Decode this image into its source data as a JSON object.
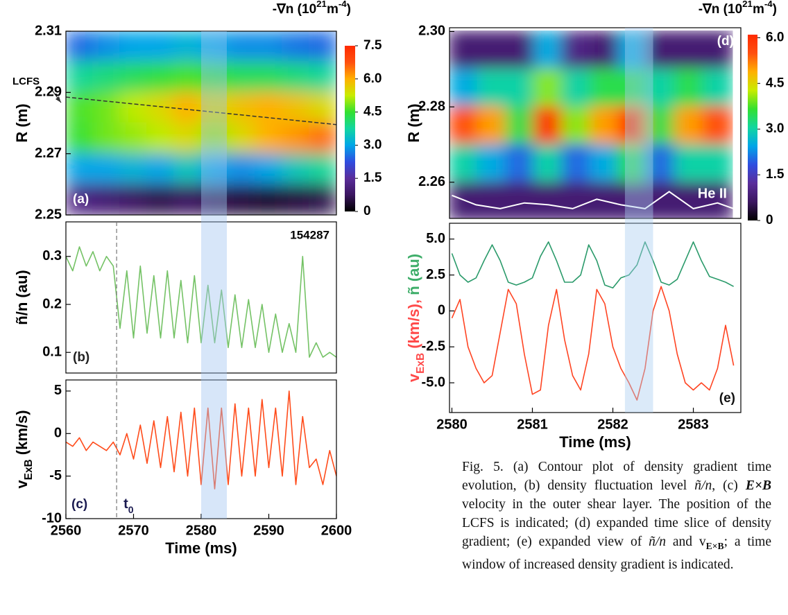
{
  "chart_data": [
    {
      "type": "heatmap",
      "panel_label": "(a)",
      "ylabel": "R (m)",
      "colorbar_label": [
        {
          "text": "-∇n (10"
        },
        {
          "text": "21",
          "style": "sup"
        },
        {
          "text": "m"
        },
        {
          "text": "-4",
          "style": "sup"
        },
        {
          "text": ")"
        }
      ],
      "ylim": [
        2.25,
        2.31
      ],
      "yticks": [
        2.25,
        2.27,
        2.29,
        2.31
      ],
      "xlim": [
        2560,
        2600
      ],
      "clim": [
        0,
        7.5
      ],
      "colorbar_ticks": [
        0,
        1.5,
        {
          "value": 3,
          "label": "3.0"
        },
        4.5,
        {
          "value": 6,
          "label": "6.0"
        },
        7.5
      ],
      "colormap": [
        "#000000",
        "#3b1660",
        "#5a2d9a",
        "#2f4de0",
        "#00a6e8",
        "#12d6a0",
        "#33e030",
        "#c8ec00",
        "#ffb000",
        "#ff5010",
        "#ff2a00"
      ],
      "x": [
        2562,
        2566,
        2570,
        2574,
        2578,
        2582,
        2586,
        2590,
        2594,
        2598
      ],
      "y": [
        2.305,
        2.295,
        2.285,
        2.275,
        2.265,
        2.255
      ],
      "z": [
        [
          2.5,
          2.8,
          3.0,
          3.0,
          3.2,
          3.0,
          2.8,
          2.8,
          2.6,
          2.5
        ],
        [
          3.8,
          4.0,
          4.2,
          4.4,
          4.6,
          4.4,
          4.2,
          4.2,
          4.0,
          3.8
        ],
        [
          4.6,
          4.8,
          5.2,
          5.5,
          6.0,
          5.5,
          5.8,
          6.0,
          5.8,
          5.5
        ],
        [
          4.5,
          4.8,
          5.0,
          5.2,
          5.5,
          5.0,
          5.5,
          6.0,
          6.2,
          6.5
        ],
        [
          3.0,
          3.0,
          3.2,
          3.0,
          3.5,
          3.0,
          2.8,
          3.0,
          3.5,
          3.8
        ],
        [
          1.2,
          1.0,
          0.8,
          0.6,
          0.8,
          0.6,
          0.5,
          0.4,
          0.5,
          0.6
        ]
      ],
      "lcfs": {
        "label": "LCFS",
        "x": [
          2560,
          2600
        ],
        "values": [
          2.2885,
          2.2795
        ]
      },
      "highlight": [
        2580,
        2583.8
      ]
    },
    {
      "type": "line",
      "panel_label": "(b)",
      "annotation": "154287",
      "ylabel": "ñ/n (au)",
      "ylim": [
        0.057,
        0.372
      ],
      "yticks": [
        0.1,
        0.2,
        0.3
      ],
      "xlim": [
        2560,
        2600
      ],
      "x": [
        2560,
        2561,
        2562,
        2563,
        2564,
        2565,
        2566,
        2567,
        2568,
        2569,
        2570,
        2571,
        2572,
        2573,
        2574,
        2575,
        2576,
        2577,
        2578,
        2579,
        2580,
        2581,
        2582,
        2583,
        2584,
        2585,
        2586,
        2587,
        2588,
        2589,
        2590,
        2591,
        2592,
        2593,
        2594,
        2595,
        2596,
        2597,
        2598,
        2599,
        2600
      ],
      "series": [
        {
          "color": "#74c265",
          "values": [
            0.3,
            0.27,
            0.32,
            0.28,
            0.31,
            0.27,
            0.3,
            0.28,
            0.15,
            0.27,
            0.13,
            0.28,
            0.14,
            0.26,
            0.13,
            0.27,
            0.13,
            0.25,
            0.12,
            0.26,
            0.12,
            0.24,
            0.12,
            0.23,
            0.11,
            0.22,
            0.11,
            0.21,
            0.11,
            0.2,
            0.1,
            0.18,
            0.1,
            0.16,
            0.1,
            0.3,
            0.09,
            0.12,
            0.09,
            0.1,
            0.09
          ]
        }
      ]
    },
    {
      "type": "line",
      "panel_label": "(c)",
      "ylabel": [
        {
          "text": "v"
        },
        {
          "text": "ExB",
          "style": "sub"
        },
        {
          "text": " (km/s)"
        }
      ],
      "ylim": [
        -10,
        6.3
      ],
      "yticks": [
        -10,
        -5,
        0,
        5
      ],
      "xlim": [
        2560,
        2600
      ],
      "xticks": [
        2560,
        2570,
        2580,
        2590,
        2600
      ],
      "xlabel": "Time (ms)",
      "t0_label": [
        {
          "text": "t"
        },
        {
          "text": "0",
          "style": "sub"
        }
      ],
      "t0_line": 2567.5,
      "x": [
        2560,
        2561,
        2562,
        2563,
        2564,
        2565,
        2566,
        2567,
        2568,
        2569,
        2570,
        2571,
        2572,
        2573,
        2574,
        2575,
        2576,
        2577,
        2578,
        2579,
        2580,
        2581,
        2582,
        2583,
        2584,
        2585,
        2586,
        2587,
        2588,
        2589,
        2590,
        2591,
        2592,
        2593,
        2594,
        2595,
        2596,
        2597,
        2598,
        2599,
        2600
      ],
      "series": [
        {
          "color": "#ff4b1a",
          "values": [
            -1,
            -1.5,
            -0.5,
            -2,
            -1,
            -1.5,
            -2,
            -1,
            -2.5,
            0,
            -3,
            1,
            -3.5,
            1.5,
            -4,
            2,
            -4.5,
            2.5,
            -5,
            3,
            -6,
            3,
            -6.5,
            3,
            -6,
            3.5,
            -5,
            3,
            -5,
            4,
            -4,
            3,
            -5,
            5,
            -6,
            2,
            -4,
            -3,
            -6,
            -2,
            -5
          ]
        }
      ]
    },
    {
      "type": "heatmap",
      "panel_label": "(d)",
      "ylabel": "R (m)",
      "colorbar_label": [
        {
          "text": "-∇n (10"
        },
        {
          "text": "21",
          "style": "sup"
        },
        {
          "text": "m"
        },
        {
          "text": "-4",
          "style": "sup"
        },
        {
          "text": ")"
        }
      ],
      "ylim": [
        2.2504,
        2.301
      ],
      "yticks": [
        2.26,
        2.28,
        {
          "value": 2.3,
          "label": "2.30"
        }
      ],
      "xlim": [
        2579.97,
        2583.59
      ],
      "clim": [
        0,
        6.1
      ],
      "colorbar_ticks": [
        0,
        1.5,
        {
          "value": 3,
          "label": "3.0"
        },
        4.5,
        {
          "value": 6,
          "label": "6.0"
        }
      ],
      "colormap": [
        "#000000",
        "#3b1660",
        "#5a2d9a",
        "#2f4de0",
        "#00a6e8",
        "#12d6a0",
        "#33e030",
        "#c8ec00",
        "#ffb000",
        "#ff5010",
        "#ff2a00"
      ],
      "x": [
        2580.15,
        2580.5,
        2580.85,
        2581.2,
        2581.55,
        2581.9,
        2582.25,
        2582.6,
        2582.95,
        2583.3
      ],
      "y": [
        2.295,
        2.285,
        2.275,
        2.265,
        2.255
      ],
      "z": [
        [
          0.8,
          0.8,
          0.8,
          2.5,
          1.0,
          0.8,
          2.5,
          0.8,
          0.8,
          0.8
        ],
        [
          2.5,
          3.0,
          3.0,
          4.0,
          3.0,
          3.5,
          3.5,
          3.0,
          3.5,
          3.0
        ],
        [
          5.5,
          5.0,
          3.5,
          6.0,
          4.0,
          5.0,
          6.0,
          3.5,
          5.0,
          5.5
        ],
        [
          3.0,
          2.5,
          2.0,
          3.0,
          2.0,
          2.5,
          3.5,
          2.0,
          3.0,
          3.0
        ],
        [
          0.8,
          0.8,
          0.8,
          0.8,
          0.8,
          0.8,
          0.8,
          0.8,
          0.8,
          0.8
        ]
      ],
      "he_ii": {
        "label": "He II",
        "x": [
          2580,
          2580.3,
          2580.6,
          2580.9,
          2581.2,
          2581.5,
          2581.8,
          2582.1,
          2582.4,
          2582.7,
          2583.0,
          2583.3,
          2583.5
        ],
        "values": [
          2.2565,
          2.254,
          2.253,
          2.2545,
          2.254,
          2.253,
          2.2555,
          2.254,
          2.253,
          2.2575,
          2.253,
          2.2545,
          2.253
        ]
      }
    },
    {
      "type": "line",
      "panel_label": "(e)",
      "ylabel": [
        {
          "text": "v",
          "color": "#ff4a4a"
        },
        {
          "text": "ExB",
          "style": "sub",
          "color": "#ff4a4a"
        },
        {
          "text": " (km/s), ",
          "color": "#ff4a4a"
        },
        {
          "text": "ñ (au)",
          "color": "#3fae6a"
        }
      ],
      "ylim": [
        -7.07,
        6.1
      ],
      "yticks": [
        {
          "value": -5,
          "label": "-5.0"
        },
        -2.5,
        0,
        2.5,
        {
          "value": 5,
          "label": "5.0"
        }
      ],
      "xlim": [
        2579.97,
        2583.59
      ],
      "xticks": [
        2580,
        2581,
        2582,
        2583
      ],
      "xlabel": "Time (ms)",
      "highlight": [
        2582.15,
        2582.5
      ],
      "x": [
        2580,
        2580.1,
        2580.2,
        2580.3,
        2580.4,
        2580.5,
        2580.6,
        2580.7,
        2580.8,
        2580.9,
        2581,
        2581.1,
        2581.2,
        2581.3,
        2581.4,
        2581.5,
        2581.6,
        2581.7,
        2581.8,
        2581.9,
        2582,
        2582.1,
        2582.2,
        2582.3,
        2582.4,
        2582.5,
        2582.6,
        2582.7,
        2582.8,
        2582.9,
        2583,
        2583.1,
        2583.2,
        2583.3,
        2583.4,
        2583.5
      ],
      "series": [
        {
          "color": "#2a9a6a",
          "values": [
            4.0,
            2.5,
            2.0,
            2.3,
            3.5,
            4.6,
            3.5,
            2.0,
            1.8,
            2.0,
            2.3,
            3.8,
            4.8,
            3.5,
            2.0,
            2.0,
            2.5,
            4.6,
            3.5,
            1.8,
            1.6,
            2.3,
            2.5,
            3.2,
            4.8,
            3.5,
            2.0,
            1.8,
            2.2,
            3.5,
            4.8,
            3.5,
            2.4,
            2.2,
            2.0,
            1.7
          ]
        },
        {
          "color": "#ff4422",
          "values": [
            -0.5,
            0.8,
            -2.5,
            -4.0,
            -5.0,
            -4.5,
            -1.5,
            1.5,
            0.5,
            -3.0,
            -5.8,
            -5.5,
            -1.0,
            1.5,
            -2.0,
            -4.5,
            -5.5,
            -3.0,
            1.5,
            0.5,
            -2.5,
            -4.0,
            -5.0,
            -6.2,
            -4.0,
            0.0,
            1.7,
            0.0,
            -3.0,
            -5.0,
            -5.5,
            -5.0,
            -5.5,
            -4.0,
            -1.0,
            -3.8
          ]
        }
      ]
    }
  ],
  "caption": [
    {
      "text": "Fig. 5. (a) Contour plot of density gradient time evolution, (b) density fluctuation level "
    },
    {
      "text": "ñ/n",
      "style": "italic"
    },
    {
      "text": ", (c) "
    },
    {
      "text": "E×B",
      "style": "bold-italic"
    },
    {
      "text": " velocity in the outer shear layer. The position of the LCFS is indicated; (d) expanded time slice of density gradient; (e) expanded view of "
    },
    {
      "text": "ñ/n",
      "style": "italic"
    },
    {
      "text": " and v"
    },
    {
      "text": "E×B",
      "style": "sub"
    },
    {
      "text": "; a time window of increased density gradient is indicated."
    }
  ]
}
